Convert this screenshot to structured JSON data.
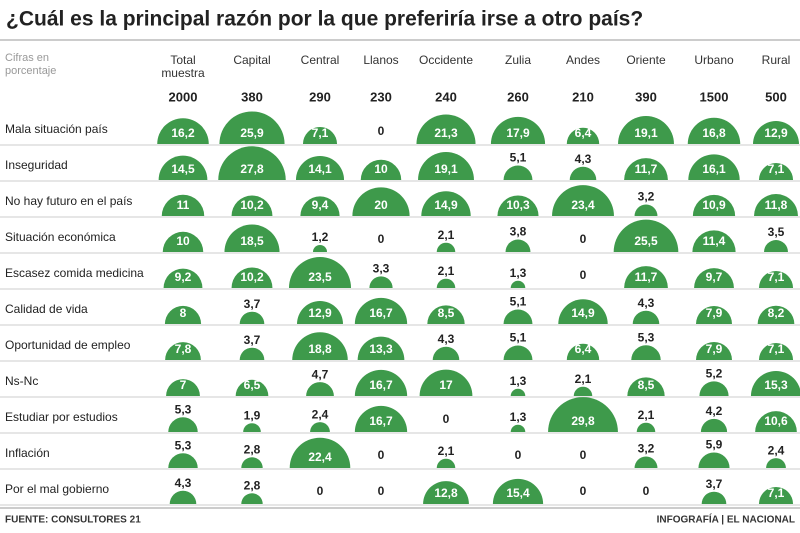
{
  "header": {
    "title": "¿Cuál es la principal razón por la que preferiría irse a otro país?",
    "note": "Cifras en porcentaje"
  },
  "table": {
    "columns": [
      {
        "name": "Total muestra",
        "n": 2000
      },
      {
        "name": "Capital",
        "n": 380
      },
      {
        "name": "Central",
        "n": 290
      },
      {
        "name": "Llanos",
        "n": 230
      },
      {
        "name": "Occidente",
        "n": 240
      },
      {
        "name": "Zulia",
        "n": 260
      },
      {
        "name": "Andes",
        "n": 210
      },
      {
        "name": "Oriente",
        "n": 390
      },
      {
        "name": "Urbano",
        "n": 1500
      },
      {
        "name": "Rural",
        "n": 500
      }
    ],
    "rows": [
      {
        "label": "Mala situación país",
        "values": [
          16.2,
          25.9,
          7.1,
          0,
          21.3,
          17.9,
          6.4,
          19.1,
          16.8,
          12.9
        ],
        "value_labels": [
          "16,2",
          "25,9",
          "7,1",
          "0",
          "21,3",
          "17,9",
          "6,4",
          "19,1",
          "16,8",
          "12,9"
        ]
      },
      {
        "label": "Inseguridad",
        "values": [
          14.5,
          27.8,
          14.1,
          10,
          19.1,
          5.1,
          4.3,
          11.7,
          16.1,
          7.1
        ],
        "value_labels": [
          "14,5",
          "27,8",
          "14,1",
          "10",
          "19,1",
          "5,1",
          "4,3",
          "11,7",
          "16,1",
          "7,1"
        ]
      },
      {
        "label": "No hay futuro en el país",
        "values": [
          11,
          10.2,
          9.4,
          20,
          14.9,
          10.3,
          23.4,
          3.2,
          10.9,
          11.8
        ],
        "value_labels": [
          "11",
          "10,2",
          "9,4",
          "20",
          "14,9",
          "10,3",
          "23,4",
          "3,2",
          "10,9",
          "11,8"
        ]
      },
      {
        "label": "Situación económica",
        "values": [
          10,
          18.5,
          1.2,
          0,
          2.1,
          3.8,
          0,
          25.5,
          11.4,
          3.5
        ],
        "value_labels": [
          "10",
          "18,5",
          "1,2",
          "0",
          "2,1",
          "3,8",
          "0",
          "25,5",
          "11,4",
          "3,5"
        ]
      },
      {
        "label": "Escasez comida medicina",
        "values": [
          9.2,
          10.2,
          23.5,
          3.3,
          2.1,
          1.3,
          0,
          11.7,
          9.7,
          7.1
        ],
        "value_labels": [
          "9,2",
          "10,2",
          "23,5",
          "3,3",
          "2,1",
          "1,3",
          "0",
          "11,7",
          "9,7",
          "7,1"
        ]
      },
      {
        "label": "Calidad de vida",
        "values": [
          8,
          3.7,
          12.9,
          16.7,
          8.5,
          5.1,
          14.9,
          4.3,
          7.9,
          8.2
        ],
        "value_labels": [
          "8",
          "3,7",
          "12,9",
          "16,7",
          "8,5",
          "5,1",
          "14,9",
          "4,3",
          "7,9",
          "8,2"
        ]
      },
      {
        "label": "Oportunidad de empleo",
        "values": [
          7.8,
          3.7,
          18.8,
          13.3,
          4.3,
          5.1,
          6.4,
          5.3,
          7.9,
          7.1
        ],
        "value_labels": [
          "7,8",
          "3,7",
          "18,8",
          "13,3",
          "4,3",
          "5,1",
          "6,4",
          "5,3",
          "7,9",
          "7,1"
        ]
      },
      {
        "label": "Ns-Nc",
        "values": [
          7,
          6.5,
          4.7,
          16.7,
          17,
          1.3,
          2.1,
          8.5,
          5.2,
          15.3
        ],
        "value_labels": [
          "7",
          "6,5",
          "4,7",
          "16,7",
          "17",
          "1,3",
          "2,1",
          "8,5",
          "5,2",
          "15,3"
        ]
      },
      {
        "label": "Estudiar por estudios",
        "values": [
          5.3,
          1.9,
          2.4,
          16.7,
          0,
          1.3,
          29.8,
          2.1,
          4.2,
          10.6
        ],
        "value_labels": [
          "5,3",
          "1,9",
          "2,4",
          "16,7",
          "0",
          "1,3",
          "29,8",
          "2,1",
          "4,2",
          "10,6"
        ]
      },
      {
        "label": "Inflación",
        "values": [
          5.3,
          2.8,
          22.4,
          0,
          2.1,
          0,
          0,
          3.2,
          5.9,
          2.4
        ],
        "value_labels": [
          "5,3",
          "2,8",
          "22,4",
          "0",
          "2,1",
          "0",
          "0",
          "3,2",
          "5,9",
          "2,4"
        ]
      },
      {
        "label": "Por el mal gobierno",
        "values": [
          4.3,
          2.8,
          0,
          0,
          12.8,
          15.4,
          0,
          0,
          3.7,
          7.1
        ],
        "value_labels": [
          "4,3",
          "2,8",
          "0",
          "0",
          "12,8",
          "15,4",
          "0",
          "0",
          "3,7",
          "7,1"
        ]
      }
    ]
  },
  "footer": {
    "source": "FUENTE: CONSULTORES 21",
    "credit": "INFOGRAFÍA | EL NACIONAL"
  }
}
